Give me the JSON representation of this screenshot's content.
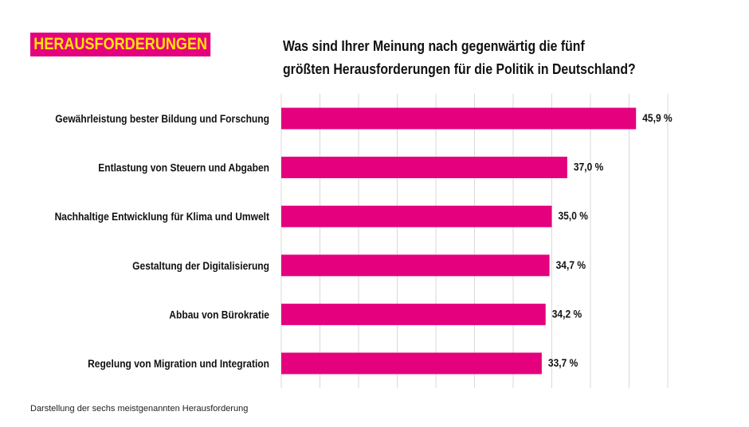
{
  "header": {
    "tag": "HERAUSFORDERUNGEN",
    "title_line1": "Was sind Ihrer Meinung nach gegenwärtig die fünf",
    "title_line2": "größten Herausforderungen für die Politik in Deutschland?"
  },
  "footnote": "Darstellung der sechs meistgenannten Herausforderung",
  "colors": {
    "bar": "#e5007d",
    "tag_text": "#ffe500",
    "grid": "#d9d9d9"
  },
  "chart_data": {
    "type": "bar",
    "orientation": "horizontal",
    "categories": [
      "Gewährleistung bester Bildung und Forschung",
      "Entlastung von Steuern und Abgaben",
      "Nachhaltige Entwicklung für Klima und Umwelt",
      "Gestaltung der Digitalisierung",
      "Abbau von Bürokratie",
      "Regelung von Migration und Integration"
    ],
    "values": [
      45.9,
      37.0,
      35.0,
      34.7,
      34.2,
      33.7
    ],
    "value_labels": [
      "45,9 %",
      "37,0 %",
      "35,0 %",
      "34,7 %",
      "34,2 %",
      "33,7 %"
    ],
    "xlim": [
      0,
      50
    ],
    "grid": true
  }
}
